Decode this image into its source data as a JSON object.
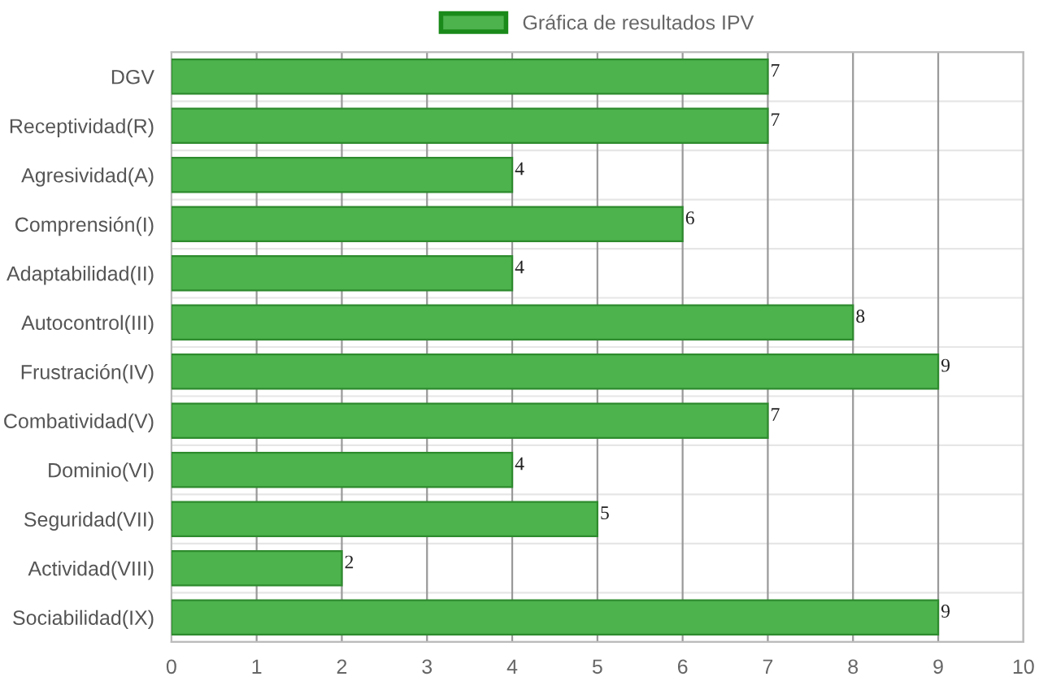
{
  "chart_data": {
    "type": "bar",
    "orientation": "horizontal",
    "categories": [
      "DGV",
      "Receptividad(R)",
      "Agresividad(A)",
      "Comprensión(I)",
      "Adaptabilidad(II)",
      "Autocontrol(III)",
      "Frustración(IV)",
      "Combatividad(V)",
      "Dominio(VI)",
      "Seguridad(VII)",
      "Actividad(VIII)",
      "Sociabilidad(IX)"
    ],
    "series": [
      {
        "name": "Gráfica de resultados IPV",
        "color": "#4db34d",
        "values": [
          7,
          7,
          4,
          6,
          4,
          8,
          9,
          7,
          4,
          5,
          2,
          9
        ]
      }
    ],
    "xlim": [
      0,
      10
    ],
    "xticks": [
      0,
      1,
      2,
      3,
      4,
      5,
      6,
      7,
      8,
      9,
      10
    ],
    "grid": true,
    "legend": "top",
    "data_labels": true
  }
}
